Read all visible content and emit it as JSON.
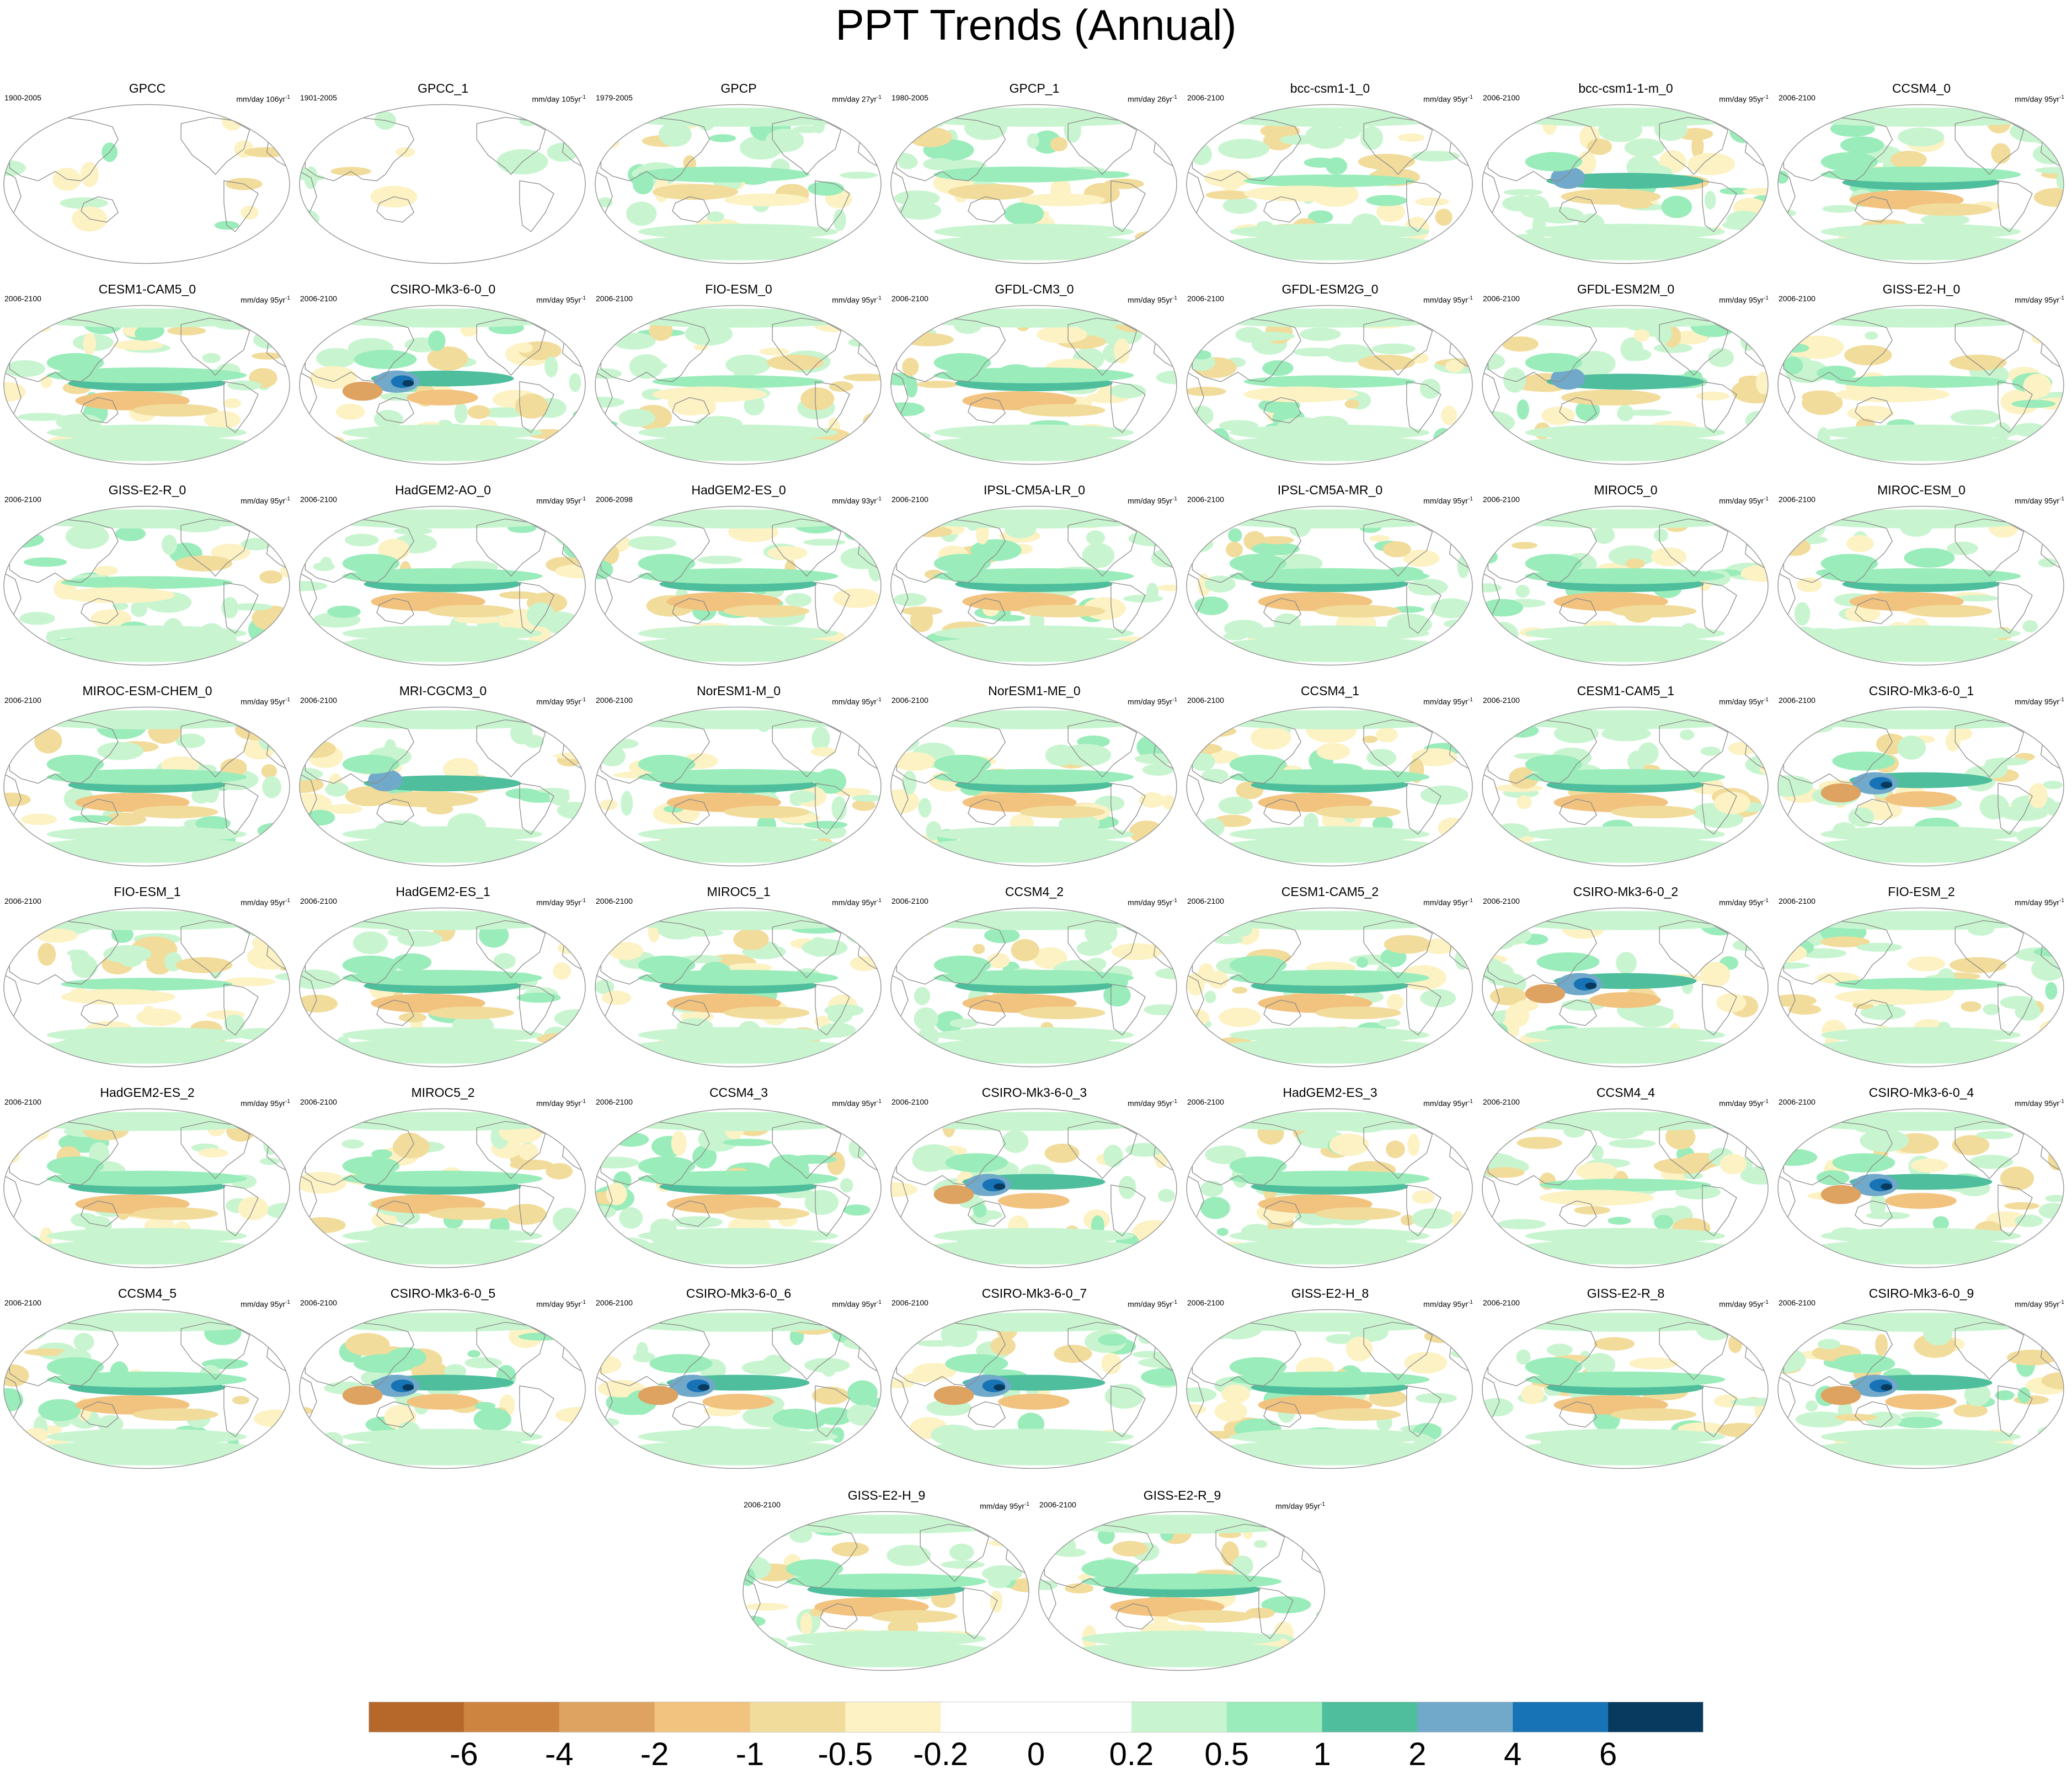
{
  "title": "PPT Trends (Annual)",
  "colors": {
    "ocean_bg": "#ffffff",
    "coast": "#8a8a8a",
    "frame": "#9a9a9a"
  },
  "chart_data": {
    "type": "heatmap",
    "title": "PPT Trends (Annual)",
    "projection": "Robinson (Pacific-centered)",
    "units_text": "mm/day",
    "panels": [
      {
        "name": "GPCC",
        "period": "1900-2005",
        "units": "mm/day 106yr",
        "sup": "-1",
        "pattern": "obs_land"
      },
      {
        "name": "GPCC_1",
        "period": "1901-2005",
        "units": "mm/day 105yr",
        "sup": "-1",
        "pattern": "obs_land"
      },
      {
        "name": "GPCP",
        "period": "1979-2005",
        "units": "mm/day 27yr",
        "sup": "-1",
        "pattern": "obs"
      },
      {
        "name": "GPCP_1",
        "period": "1980-2005",
        "units": "mm/day 26yr",
        "sup": "-1",
        "pattern": "obs"
      },
      {
        "name": "bcc-csm1-1_0",
        "period": "2006-2100",
        "units": "mm/day 95yr",
        "sup": "-1",
        "pattern": "mild"
      },
      {
        "name": "bcc-csm1-1-m_0",
        "period": "2006-2100",
        "units": "mm/day 95yr",
        "sup": "-1",
        "pattern": "blue"
      },
      {
        "name": "CCSM4_0",
        "period": "2006-2100",
        "units": "mm/day 95yr",
        "sup": "-1",
        "pattern": "band"
      },
      {
        "name": "CESM1-CAM5_0",
        "period": "2006-2100",
        "units": "mm/day 95yr",
        "sup": "-1",
        "pattern": "band"
      },
      {
        "name": "CSIRO-Mk3-6-0_0",
        "period": "2006-2100",
        "units": "mm/day 95yr",
        "sup": "-1",
        "pattern": "strong"
      },
      {
        "name": "FIO-ESM_0",
        "period": "2006-2100",
        "units": "mm/day 95yr",
        "sup": "-1",
        "pattern": "mild"
      },
      {
        "name": "GFDL-CM3_0",
        "period": "2006-2100",
        "units": "mm/day 95yr",
        "sup": "-1",
        "pattern": "band"
      },
      {
        "name": "GFDL-ESM2G_0",
        "period": "2006-2100",
        "units": "mm/day 95yr",
        "sup": "-1",
        "pattern": "mild"
      },
      {
        "name": "GFDL-ESM2M_0",
        "period": "2006-2100",
        "units": "mm/day 95yr",
        "sup": "-1",
        "pattern": "blue"
      },
      {
        "name": "GISS-E2-H_0",
        "period": "2006-2100",
        "units": "mm/day 95yr",
        "sup": "-1",
        "pattern": "mild"
      },
      {
        "name": "GISS-E2-R_0",
        "period": "2006-2100",
        "units": "mm/day 95yr",
        "sup": "-1",
        "pattern": "mild"
      },
      {
        "name": "HadGEM2-AO_0",
        "period": "2006-2100",
        "units": "mm/day 95yr",
        "sup": "-1",
        "pattern": "band"
      },
      {
        "name": "HadGEM2-ES_0",
        "period": "2006-2098",
        "units": "mm/day 93yr",
        "sup": "-1",
        "pattern": "band"
      },
      {
        "name": "IPSL-CM5A-LR_0",
        "period": "2006-2100",
        "units": "mm/day 95yr",
        "sup": "-1",
        "pattern": "band"
      },
      {
        "name": "IPSL-CM5A-MR_0",
        "period": "2006-2100",
        "units": "mm/day 95yr",
        "sup": "-1",
        "pattern": "band"
      },
      {
        "name": "MIROC5_0",
        "period": "2006-2100",
        "units": "mm/day 95yr",
        "sup": "-1",
        "pattern": "band"
      },
      {
        "name": "MIROC-ESM_0",
        "period": "2006-2100",
        "units": "mm/day 95yr",
        "sup": "-1",
        "pattern": "band"
      },
      {
        "name": "MIROC-ESM-CHEM_0",
        "period": "2006-2100",
        "units": "mm/day 95yr",
        "sup": "-1",
        "pattern": "band"
      },
      {
        "name": "MRI-CGCM3_0",
        "period": "2006-2100",
        "units": "mm/day 95yr",
        "sup": "-1",
        "pattern": "blue"
      },
      {
        "name": "NorESM1-M_0",
        "period": "2006-2100",
        "units": "mm/day 95yr",
        "sup": "-1",
        "pattern": "band"
      },
      {
        "name": "NorESM1-ME_0",
        "period": "2006-2100",
        "units": "mm/day 95yr",
        "sup": "-1",
        "pattern": "band"
      },
      {
        "name": "CCSM4_1",
        "period": "2006-2100",
        "units": "mm/day 95yr",
        "sup": "-1",
        "pattern": "band"
      },
      {
        "name": "CESM1-CAM5_1",
        "period": "2006-2100",
        "units": "mm/day 95yr",
        "sup": "-1",
        "pattern": "band"
      },
      {
        "name": "CSIRO-Mk3-6-0_1",
        "period": "2006-2100",
        "units": "mm/day 95yr",
        "sup": "-1",
        "pattern": "strong"
      },
      {
        "name": "FIO-ESM_1",
        "period": "2006-2100",
        "units": "mm/day 95yr",
        "sup": "-1",
        "pattern": "mild"
      },
      {
        "name": "HadGEM2-ES_1",
        "period": "2006-2100",
        "units": "mm/day 95yr",
        "sup": "-1",
        "pattern": "band"
      },
      {
        "name": "MIROC5_1",
        "period": "2006-2100",
        "units": "mm/day 95yr",
        "sup": "-1",
        "pattern": "band"
      },
      {
        "name": "CCSM4_2",
        "period": "2006-2100",
        "units": "mm/day 95yr",
        "sup": "-1",
        "pattern": "band"
      },
      {
        "name": "CESM1-CAM5_2",
        "period": "2006-2100",
        "units": "mm/day 95yr",
        "sup": "-1",
        "pattern": "band"
      },
      {
        "name": "CSIRO-Mk3-6-0_2",
        "period": "2006-2100",
        "units": "mm/day 95yr",
        "sup": "-1",
        "pattern": "strong"
      },
      {
        "name": "FIO-ESM_2",
        "period": "2006-2100",
        "units": "mm/day 95yr",
        "sup": "-1",
        "pattern": "mild"
      },
      {
        "name": "HadGEM2-ES_2",
        "period": "2006-2100",
        "units": "mm/day 95yr",
        "sup": "-1",
        "pattern": "band"
      },
      {
        "name": "MIROC5_2",
        "period": "2006-2100",
        "units": "mm/day 95yr",
        "sup": "-1",
        "pattern": "band"
      },
      {
        "name": "CCSM4_3",
        "period": "2006-2100",
        "units": "mm/day 95yr",
        "sup": "-1",
        "pattern": "band"
      },
      {
        "name": "CSIRO-Mk3-6-0_3",
        "period": "2006-2100",
        "units": "mm/day 95yr",
        "sup": "-1",
        "pattern": "strong"
      },
      {
        "name": "HadGEM2-ES_3",
        "period": "2006-2100",
        "units": "mm/day 95yr",
        "sup": "-1",
        "pattern": "band"
      },
      {
        "name": "CCSM4_4",
        "period": "2006-2100",
        "units": "mm/day 95yr",
        "sup": "-1",
        "pattern": "mild"
      },
      {
        "name": "CSIRO-Mk3-6-0_4",
        "period": "2006-2100",
        "units": "mm/day 95yr",
        "sup": "-1",
        "pattern": "strong"
      },
      {
        "name": "CCSM4_5",
        "period": "2006-2100",
        "units": "mm/day 95yr",
        "sup": "-1",
        "pattern": "band"
      },
      {
        "name": "CSIRO-Mk3-6-0_5",
        "period": "2006-2100",
        "units": "mm/day 95yr",
        "sup": "-1",
        "pattern": "strong"
      },
      {
        "name": "CSIRO-Mk3-6-0_6",
        "period": "2006-2100",
        "units": "mm/day 95yr",
        "sup": "-1",
        "pattern": "strong"
      },
      {
        "name": "CSIRO-Mk3-6-0_7",
        "period": "2006-2100",
        "units": "mm/day 95yr",
        "sup": "-1",
        "pattern": "strong"
      },
      {
        "name": "GISS-E2-H_8",
        "period": "2006-2100",
        "units": "mm/day 95yr",
        "sup": "-1",
        "pattern": "band"
      },
      {
        "name": "GISS-E2-R_8",
        "period": "2006-2100",
        "units": "mm/day 95yr",
        "sup": "-1",
        "pattern": "band"
      },
      {
        "name": "CSIRO-Mk3-6-0_9",
        "period": "2006-2100",
        "units": "mm/day 95yr",
        "sup": "-1",
        "pattern": "strong"
      },
      {
        "name": "GISS-E2-H_9",
        "period": "2006-2100",
        "units": "mm/day 95yr",
        "sup": "-1",
        "pattern": "band"
      },
      {
        "name": "GISS-E2-R_9",
        "period": "2006-2100",
        "units": "mm/day 95yr",
        "sup": "-1",
        "pattern": "band"
      }
    ],
    "colorbar": {
      "levels": [
        "-6",
        "-4",
        "-2",
        "-1",
        "-0.5",
        "-0.2",
        "0",
        "0.2",
        "0.5",
        "1",
        "2",
        "4",
        "6"
      ],
      "colors": [
        "#b5682a",
        "#cc8440",
        "#dea261",
        "#f2c27f",
        "#f2dc9b",
        "#fcf2c4",
        "#ffffff",
        "#ffffff",
        "#c8f5d0",
        "#9aecba",
        "#4fbe9c",
        "#70a9c9",
        "#1773b5",
        "#073a5e"
      ]
    }
  }
}
